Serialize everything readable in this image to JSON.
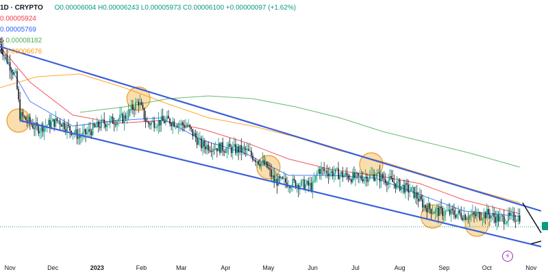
{
  "header": {
    "symbol": "1D · CRYPTO",
    "ohlc": "O0.00006004 H0.00006243 L0.00005973 C0.00006100 +0.00000097 (+1.62%)"
  },
  "ma_labels": [
    {
      "prefix": "",
      "value": "0.00005924",
      "color": "#f23645"
    },
    {
      "prefix": "",
      "value": "0.00005769",
      "color": "#2962ff"
    },
    {
      "prefix": "5",
      "value": "0.00008182",
      "color": "#4caf50"
    },
    {
      "prefix": "6",
      "value": "0.00006676",
      "color": "#ff9800"
    }
  ],
  "colors": {
    "up": "#089981",
    "down": "#f23645",
    "candle": "#131722",
    "channel": "#3a5fd9",
    "highlight_fill": "#f5c36a",
    "highlight_stroke": "#e89a2c",
    "ma_red": "#f23645",
    "ma_blue": "#2962ff",
    "ma_green": "#4caf50",
    "ma_orange": "#ff9800"
  },
  "icons": [
    "lightning-icon",
    "price-tag"
  ],
  "chart_data": {
    "type": "candlestick",
    "x_axis": {
      "labels": [
        "Nov",
        "Dec",
        "2023",
        "Feb",
        "Mar",
        "Apr",
        "May",
        "Jun",
        "Jul",
        "Aug",
        "Sep",
        "Oct",
        "Nov"
      ],
      "bold": [
        "2023"
      ],
      "range": [
        "2022-10-25",
        "2023-11-08"
      ]
    },
    "y_axis": {
      "range": [
        4.5e-06,
        1.35e-05
      ],
      "labels_visible": false
    },
    "last_close": 6.1e-05,
    "series_path": [
      [
        "2022-10-25",
        1.24e-05
      ],
      [
        "2022-10-30",
        1.18e-05
      ],
      [
        "2022-11-05",
        1.12e-05
      ],
      [
        "2022-11-08",
        9.8e-06
      ],
      [
        "2022-11-20",
        9.3e-06
      ],
      [
        "2022-12-05",
        9.6e-06
      ],
      [
        "2022-12-20",
        9e-06
      ],
      [
        "2023-01-05",
        9.5e-06
      ],
      [
        "2023-01-20",
        9.7e-06
      ],
      [
        "2023-01-30",
        1.03e-05
      ],
      [
        "2023-02-05",
        9.5e-06
      ],
      [
        "2023-02-20",
        9.6e-06
      ],
      [
        "2023-03-05",
        9.4e-06
      ],
      [
        "2023-03-15",
        8.7e-06
      ],
      [
        "2023-03-30",
        8.6e-06
      ],
      [
        "2023-04-15",
        8.5e-06
      ],
      [
        "2023-04-30",
        7.9e-06
      ],
      [
        "2023-05-05",
        7.4e-06
      ],
      [
        "2023-05-20",
        7.3e-06
      ],
      [
        "2023-06-01",
        7.2e-06
      ],
      [
        "2023-06-05",
        7.8e-06
      ],
      [
        "2023-06-15",
        7.7e-06
      ],
      [
        "2023-07-01",
        7.5e-06
      ],
      [
        "2023-07-15",
        7.6e-06
      ],
      [
        "2023-07-25",
        7.4e-06
      ],
      [
        "2023-08-10",
        7e-06
      ],
      [
        "2023-08-18",
        6.5e-06
      ],
      [
        "2023-08-25",
        6.3e-06
      ],
      [
        "2023-09-10",
        6.2e-06
      ],
      [
        "2023-09-20",
        6.1e-06
      ],
      [
        "2023-10-01",
        6.2e-06
      ],
      [
        "2023-10-10",
        6e-06
      ],
      [
        "2023-10-24",
        6.1e-06
      ]
    ],
    "moving_averages": [
      {
        "color": "ma_red",
        "points": [
          [
            "2022-10-25",
            1.23e-05
          ],
          [
            "2022-11-15",
            1.1e-05
          ],
          [
            "2022-12-15",
            9.8e-06
          ],
          [
            "2023-01-15",
            9.5e-06
          ],
          [
            "2023-02-15",
            9.6e-06
          ],
          [
            "2023-03-15",
            9.3e-06
          ],
          [
            "2023-04-15",
            8.8e-06
          ],
          [
            "2023-05-15",
            8.2e-06
          ],
          [
            "2023-06-15",
            7.8e-06
          ],
          [
            "2023-07-15",
            7.6e-06
          ],
          [
            "2023-08-15",
            7.3e-06
          ],
          [
            "2023-09-15",
            6.7e-06
          ],
          [
            "2023-10-24",
            6.2e-06
          ]
        ]
      },
      {
        "color": "ma_blue",
        "points": [
          [
            "2022-10-25",
            1.22e-05
          ],
          [
            "2022-11-15",
            1.03e-05
          ],
          [
            "2022-12-15",
            9.4e-06
          ],
          [
            "2023-01-15",
            9.6e-06
          ],
          [
            "2023-02-15",
            9.7e-06
          ],
          [
            "2023-03-15",
            8.9e-06
          ],
          [
            "2023-04-15",
            8.4e-06
          ],
          [
            "2023-05-15",
            7.6e-06
          ],
          [
            "2023-06-15",
            7.6e-06
          ],
          [
            "2023-07-15",
            7.5e-06
          ],
          [
            "2023-08-15",
            6.9e-06
          ],
          [
            "2023-09-15",
            6.3e-06
          ],
          [
            "2023-10-24",
            6.1e-06
          ]
        ]
      },
      {
        "color": "ma_orange",
        "points": [
          [
            "2022-10-25",
            1.08e-05
          ],
          [
            "2022-11-20",
            1.12e-05
          ],
          [
            "2022-12-20",
            1.13e-05
          ],
          [
            "2023-01-20",
            1.08e-05
          ],
          [
            "2023-02-20",
            1.02e-05
          ],
          [
            "2023-03-20",
            9.7e-06
          ],
          [
            "2023-04-20",
            9.4e-06
          ],
          [
            "2023-05-20",
            9e-06
          ],
          [
            "2023-06-20",
            8.5e-06
          ],
          [
            "2023-07-20",
            8.1e-06
          ],
          [
            "2023-08-20",
            7.6e-06
          ],
          [
            "2023-09-20",
            7.1e-06
          ],
          [
            "2023-10-24",
            6.6e-06
          ]
        ]
      },
      {
        "color": "ma_green",
        "points": [
          [
            "2022-12-20",
            9.9e-06
          ],
          [
            "2023-01-20",
            1.01e-05
          ],
          [
            "2023-02-20",
            1.04e-05
          ],
          [
            "2023-03-20",
            1.05e-05
          ],
          [
            "2023-04-20",
            1.04e-05
          ],
          [
            "2023-05-20",
            1.01e-05
          ],
          [
            "2023-06-20",
            9.7e-06
          ],
          [
            "2023-07-20",
            9.2e-06
          ],
          [
            "2023-08-20",
            8.8e-06
          ],
          [
            "2023-09-20",
            8.4e-06
          ],
          [
            "2023-10-24",
            7.9e-06
          ]
        ]
      }
    ],
    "channel_lines": [
      {
        "from": [
          "2022-10-25",
          1.23e-05
        ],
        "to": [
          "2023-11-08",
          6.3e-06
        ]
      },
      {
        "from": [
          "2022-11-08",
          9.6e-06
        ],
        "to": [
          "2023-11-08",
          5e-06
        ]
      }
    ],
    "highlight_circles": [
      [
        "2022-11-07",
        9.6e-06
      ],
      [
        "2023-01-30",
        1.04e-05
      ],
      [
        "2023-05-01",
        7.9e-06
      ],
      [
        "2023-07-12",
        8e-06
      ],
      [
        "2023-08-24",
        6.1e-06
      ],
      [
        "2023-09-24",
        5.8e-06
      ]
    ],
    "projection_lines": [
      {
        "from": [
          "2023-10-26",
          6.6e-06
        ],
        "to": [
          "2023-11-08",
          5.5e-06
        ]
      },
      {
        "from": [
          "2023-11-01",
          5.1e-06
        ],
        "to": [
          "2023-11-08",
          5.2e-06
        ]
      }
    ]
  }
}
